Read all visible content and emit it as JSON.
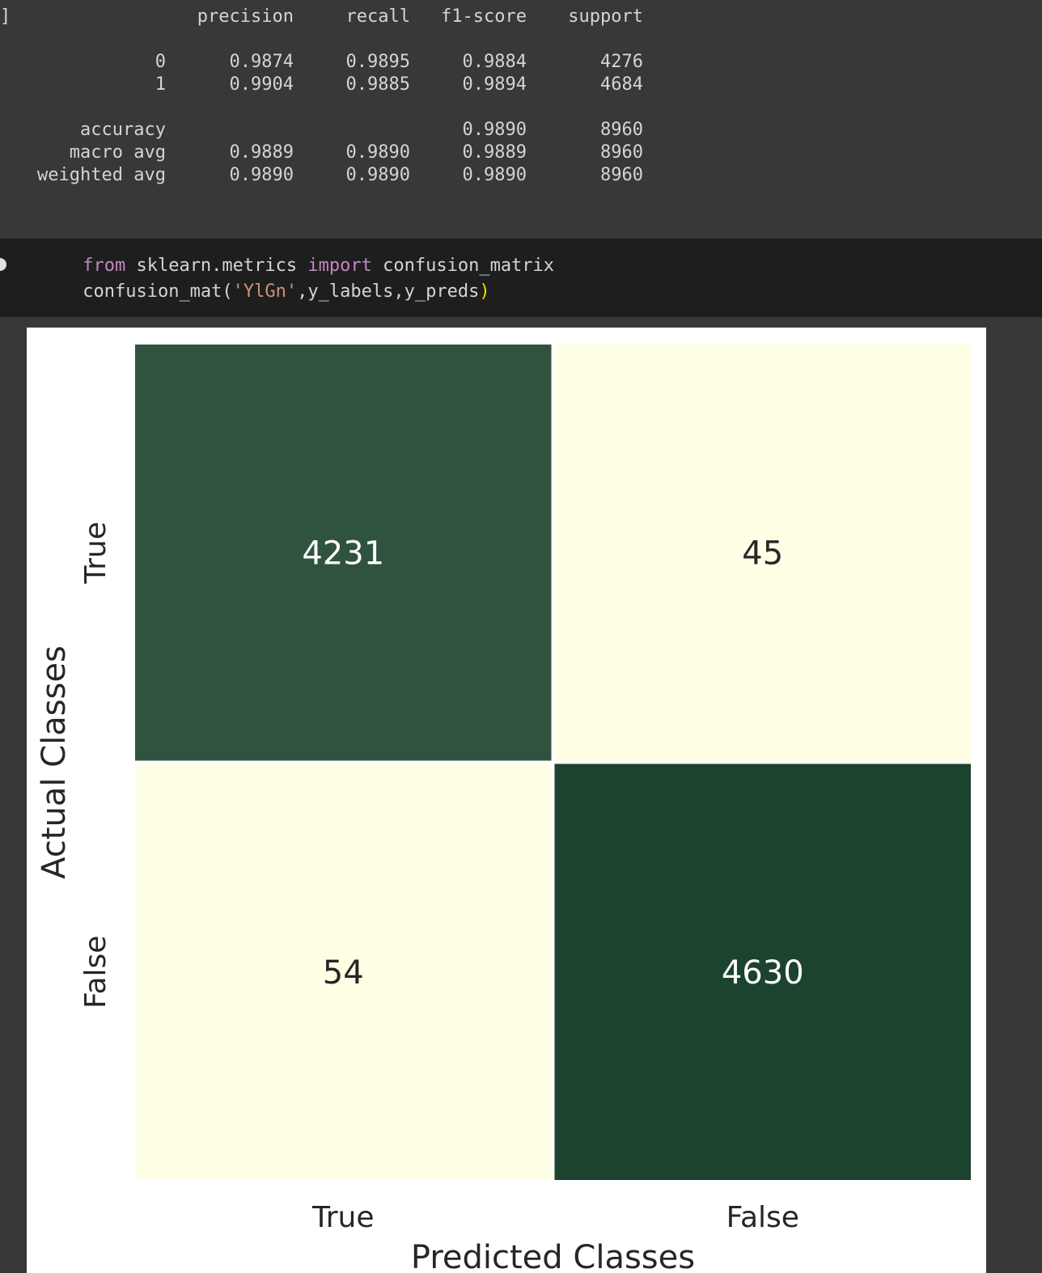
{
  "report": {
    "columns": [
      "precision",
      "recall",
      "f1-score",
      "support"
    ],
    "rows": [
      {
        "label": "0",
        "values": [
          "0.9874",
          "0.9895",
          "0.9884",
          "4276"
        ]
      },
      {
        "label": "1",
        "values": [
          "0.9904",
          "0.9885",
          "0.9894",
          "4684"
        ]
      },
      {
        "label": "accuracy",
        "values": [
          null,
          null,
          "0.9890",
          "8960"
        ]
      },
      {
        "label": "macro avg",
        "values": [
          "0.9889",
          "0.9890",
          "0.9889",
          "8960"
        ]
      },
      {
        "label": "weighted avg",
        "values": [
          "0.9890",
          "0.9890",
          "0.9890",
          "8960"
        ]
      }
    ]
  },
  "code": {
    "lines": [
      [
        "from",
        " sklearn.metrics ",
        "import",
        " confusion_matrix"
      ],
      [
        "confusion_mat(",
        "'YlGn'",
        ",y_labels,y_preds",
        ")"
      ]
    ]
  },
  "chart_data": {
    "type": "heatmap",
    "x_categories": [
      "True",
      "False"
    ],
    "y_categories": [
      "True",
      "False"
    ],
    "values": [
      [
        4231,
        45
      ],
      [
        54,
        4630
      ]
    ],
    "xlabel": "Predicted Classes",
    "ylabel": "Actual Classes",
    "colormap": "YlGn",
    "color_range": [
      "#ffffe5",
      "#1b432e"
    ]
  }
}
